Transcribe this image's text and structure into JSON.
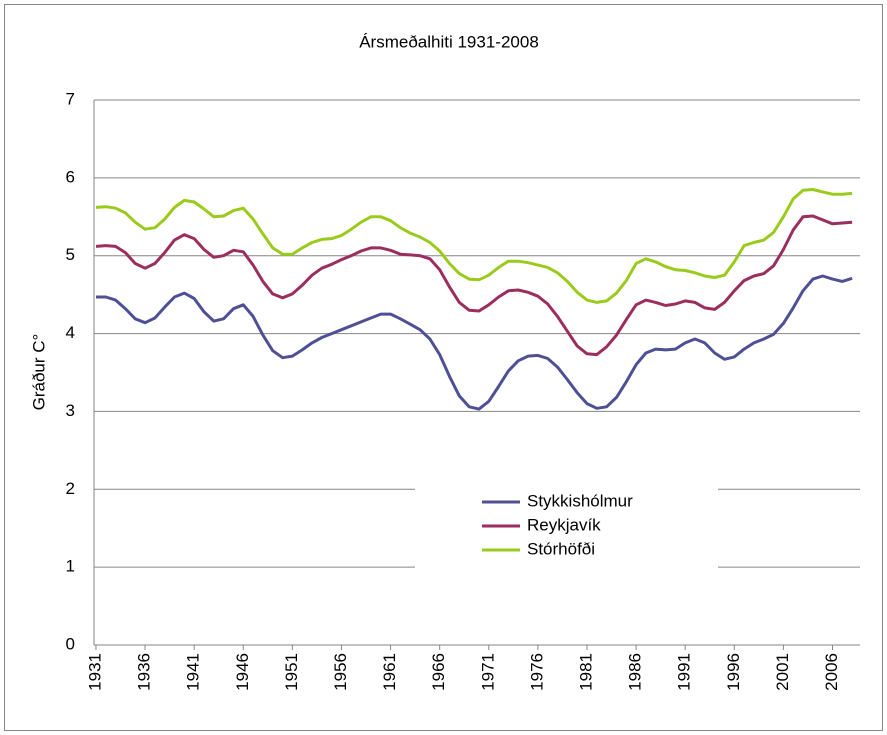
{
  "chart_data": {
    "type": "line",
    "title": "Ársmeðalhiti 1931-2008",
    "y_label": "Gráður C°",
    "x": [
      1931,
      1932,
      1933,
      1934,
      1935,
      1936,
      1937,
      1938,
      1939,
      1940,
      1941,
      1942,
      1943,
      1944,
      1945,
      1946,
      1947,
      1948,
      1949,
      1950,
      1951,
      1952,
      1953,
      1954,
      1955,
      1956,
      1957,
      1958,
      1959,
      1960,
      1961,
      1962,
      1963,
      1964,
      1965,
      1966,
      1967,
      1968,
      1969,
      1970,
      1971,
      1972,
      1973,
      1974,
      1975,
      1976,
      1977,
      1978,
      1979,
      1980,
      1981,
      1982,
      1983,
      1984,
      1985,
      1986,
      1987,
      1988,
      1989,
      1990,
      1991,
      1992,
      1993,
      1994,
      1995,
      1996,
      1997,
      1998,
      1999,
      2000,
      2001,
      2002,
      2003,
      2004,
      2005,
      2006,
      2007,
      2008
    ],
    "series": [
      {
        "name": "Stykkishólmur",
        "color": "#4f4f96",
        "values": [
          4.47,
          4.47,
          4.43,
          4.32,
          4.19,
          4.14,
          4.2,
          4.34,
          4.47,
          4.52,
          4.45,
          4.28,
          4.16,
          4.19,
          4.32,
          4.37,
          4.22,
          3.98,
          3.78,
          3.69,
          3.71,
          3.79,
          3.88,
          3.95,
          4.0,
          4.05,
          4.1,
          4.15,
          4.2,
          4.25,
          4.25,
          4.19,
          4.12,
          4.05,
          3.93,
          3.73,
          3.45,
          3.2,
          3.06,
          3.03,
          3.13,
          3.32,
          3.52,
          3.65,
          3.71,
          3.72,
          3.68,
          3.57,
          3.41,
          3.24,
          3.1,
          3.04,
          3.06,
          3.18,
          3.38,
          3.6,
          3.75,
          3.8,
          3.79,
          3.8,
          3.88,
          3.93,
          3.88,
          3.75,
          3.67,
          3.7,
          3.8,
          3.88,
          3.93,
          3.99,
          4.13,
          4.33,
          4.55,
          4.7,
          4.74,
          4.7,
          4.67,
          4.71
        ]
      },
      {
        "name": "Reykjavík",
        "color": "#9b2d5f",
        "values": [
          5.12,
          5.13,
          5.12,
          5.04,
          4.9,
          4.84,
          4.9,
          5.04,
          5.2,
          5.27,
          5.22,
          5.08,
          4.98,
          5.0,
          5.07,
          5.05,
          4.88,
          4.67,
          4.51,
          4.46,
          4.51,
          4.62,
          4.75,
          4.84,
          4.89,
          4.95,
          5.0,
          5.06,
          5.1,
          5.1,
          5.07,
          5.02,
          5.01,
          5.0,
          4.96,
          4.82,
          4.6,
          4.4,
          4.3,
          4.29,
          4.37,
          4.47,
          4.55,
          4.56,
          4.53,
          4.48,
          4.38,
          4.22,
          4.03,
          3.84,
          3.74,
          3.73,
          3.83,
          3.98,
          4.18,
          4.37,
          4.43,
          4.4,
          4.36,
          4.38,
          4.42,
          4.4,
          4.33,
          4.31,
          4.4,
          4.55,
          4.68,
          4.74,
          4.77,
          4.87,
          5.08,
          5.33,
          5.5,
          5.51,
          5.46,
          5.41,
          5.42,
          5.43
        ]
      },
      {
        "name": "Stórhöfði",
        "color": "#9acb1c",
        "values": [
          5.62,
          5.63,
          5.61,
          5.55,
          5.43,
          5.34,
          5.36,
          5.47,
          5.62,
          5.71,
          5.69,
          5.6,
          5.5,
          5.51,
          5.58,
          5.61,
          5.47,
          5.28,
          5.1,
          5.02,
          5.02,
          5.1,
          5.17,
          5.21,
          5.22,
          5.26,
          5.34,
          5.43,
          5.5,
          5.5,
          5.45,
          5.36,
          5.29,
          5.24,
          5.17,
          5.06,
          4.9,
          4.77,
          4.7,
          4.69,
          4.75,
          4.85,
          4.93,
          4.93,
          4.91,
          4.88,
          4.85,
          4.78,
          4.67,
          4.53,
          4.43,
          4.4,
          4.42,
          4.52,
          4.68,
          4.9,
          4.96,
          4.92,
          4.86,
          4.82,
          4.81,
          4.78,
          4.74,
          4.72,
          4.75,
          4.92,
          5.13,
          5.17,
          5.2,
          5.3,
          5.5,
          5.73,
          5.84,
          5.85,
          5.82,
          5.79,
          5.79,
          5.8
        ]
      }
    ],
    "xlim": [
      1930.8,
      2008.8
    ],
    "xticks": [
      1931,
      1936,
      1941,
      1946,
      1951,
      1956,
      1961,
      1966,
      1971,
      1976,
      1981,
      1986,
      1991,
      1996,
      2001,
      2006
    ],
    "ylim": [
      0,
      7
    ],
    "yticks": [
      0,
      1,
      2,
      3,
      4,
      5,
      6,
      7
    ],
    "grid": true,
    "legend": "center-right"
  }
}
